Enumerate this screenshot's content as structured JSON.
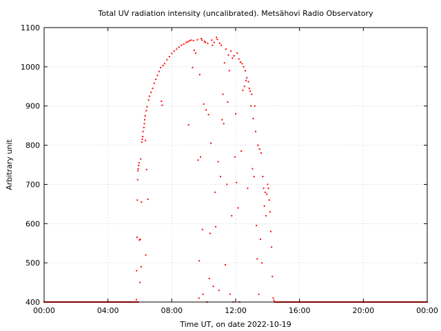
{
  "chart_data": {
    "type": "scatter",
    "title": "Total UV radiation intensity (uncalibrated). Metsähovi Radio Observatory",
    "xlabel": "Time UT, on date 2022-10-19",
    "ylabel": "Arbitrary unit",
    "xlim": [
      0,
      24
    ],
    "ylim": [
      400,
      1100
    ],
    "x_unit": "hours UT",
    "xticks": [
      0,
      4,
      8,
      12,
      16,
      20,
      24
    ],
    "xtick_labels": [
      "00:00",
      "04:00",
      "08:00",
      "12:00",
      "16:00",
      "20:00",
      "00:00"
    ],
    "yticks": [
      400,
      500,
      600,
      700,
      800,
      900,
      1000,
      1100
    ],
    "ytick_labels": [
      "400",
      "500",
      "600",
      "700",
      "800",
      "900",
      "1000",
      "1100"
    ],
    "grid": true,
    "marker_color": "#ff0000",
    "series": [
      {
        "points": [
          [
            0.0,
            400
          ],
          [
            5.9,
            400
          ],
          [
            5.78,
            406
          ],
          [
            5.8,
            480
          ],
          [
            5.82,
            565
          ],
          [
            5.84,
            660
          ],
          [
            5.86,
            712
          ],
          [
            5.88,
            735
          ],
          [
            5.9,
            740
          ],
          [
            5.92,
            748
          ],
          [
            5.95,
            755
          ],
          [
            5.97,
            558
          ],
          [
            6.0,
            450
          ],
          [
            6.02,
            560
          ],
          [
            6.05,
            765
          ],
          [
            6.08,
            490
          ],
          [
            6.1,
            655
          ],
          [
            6.12,
            808
          ],
          [
            6.15,
            815
          ],
          [
            6.18,
            822
          ],
          [
            6.2,
            835
          ],
          [
            6.25,
            845
          ],
          [
            6.28,
            855
          ],
          [
            6.3,
            865
          ],
          [
            6.33,
            875
          ],
          [
            6.35,
            812
          ],
          [
            6.37,
            520
          ],
          [
            6.4,
            888
          ],
          [
            6.42,
            738
          ],
          [
            6.45,
            898
          ],
          [
            6.5,
            662
          ],
          [
            6.55,
            915
          ],
          [
            6.6,
            925
          ],
          [
            6.7,
            935
          ],
          [
            6.8,
            945
          ],
          [
            6.9,
            958
          ],
          [
            7.0,
            968
          ],
          [
            7.1,
            978
          ],
          [
            7.2,
            988
          ],
          [
            7.3,
            998
          ],
          [
            7.35,
            912
          ],
          [
            7.4,
            902
          ],
          [
            7.45,
            1003
          ],
          [
            7.55,
            1008
          ],
          [
            7.7,
            1018
          ],
          [
            7.85,
            1026
          ],
          [
            8.0,
            1034
          ],
          [
            8.15,
            1040
          ],
          [
            8.3,
            1045
          ],
          [
            8.45,
            1050
          ],
          [
            8.6,
            1055
          ],
          [
            8.75,
            1058
          ],
          [
            8.9,
            1062
          ],
          [
            9.0,
            1064
          ],
          [
            9.05,
            852
          ],
          [
            9.1,
            1066
          ],
          [
            9.2,
            1068
          ],
          [
            9.3,
            998
          ],
          [
            9.35,
            1067
          ],
          [
            9.4,
            1042
          ],
          [
            9.5,
            1035
          ],
          [
            9.6,
            1069
          ],
          [
            9.65,
            762
          ],
          [
            9.7,
            410
          ],
          [
            9.72,
            505
          ],
          [
            9.75,
            980
          ],
          [
            9.8,
            770
          ],
          [
            9.85,
            1072
          ],
          [
            9.9,
            1068
          ],
          [
            9.92,
            585
          ],
          [
            9.95,
            420
          ],
          [
            10.0,
            905
          ],
          [
            10.05,
            1065
          ],
          [
            10.1,
            1062
          ],
          [
            10.15,
            890
          ],
          [
            10.2,
            400
          ],
          [
            10.25,
            1060
          ],
          [
            10.3,
            878
          ],
          [
            10.35,
            460
          ],
          [
            10.4,
            575
          ],
          [
            10.45,
            805
          ],
          [
            10.5,
            1068
          ],
          [
            10.55,
            1055
          ],
          [
            10.6,
            440
          ],
          [
            10.65,
            1062
          ],
          [
            10.7,
            680
          ],
          [
            10.75,
            592
          ],
          [
            10.8,
            1075
          ],
          [
            10.85,
            1070
          ],
          [
            10.9,
            758
          ],
          [
            10.95,
            430
          ],
          [
            11.0,
            1060
          ],
          [
            11.05,
            720
          ],
          [
            11.1,
            1055
          ],
          [
            11.15,
            865
          ],
          [
            11.2,
            930
          ],
          [
            11.25,
            855
          ],
          [
            11.3,
            1010
          ],
          [
            11.35,
            495
          ],
          [
            11.4,
            1045
          ],
          [
            11.45,
            700
          ],
          [
            11.5,
            910
          ],
          [
            11.55,
            1030
          ],
          [
            11.6,
            990
          ],
          [
            11.65,
            420
          ],
          [
            11.7,
            1040
          ],
          [
            11.75,
            620
          ],
          [
            11.8,
            1022
          ],
          [
            11.85,
            400
          ],
          [
            11.9,
            1028
          ],
          [
            11.95,
            770
          ],
          [
            12.0,
            880
          ],
          [
            12.05,
            705
          ],
          [
            12.1,
            1035
          ],
          [
            12.15,
            640
          ],
          [
            12.2,
            1020
          ],
          [
            12.25,
            400
          ],
          [
            12.3,
            1012
          ],
          [
            12.35,
            785
          ],
          [
            12.4,
            1008
          ],
          [
            12.45,
            940
          ],
          [
            12.5,
            1000
          ],
          [
            12.55,
            950
          ],
          [
            12.6,
            990
          ],
          [
            12.65,
            965
          ],
          [
            12.7,
            972
          ],
          [
            12.75,
            690
          ],
          [
            12.8,
            962
          ],
          [
            12.85,
            945
          ],
          [
            12.9,
            938
          ],
          [
            12.95,
            900
          ],
          [
            13.0,
            930
          ],
          [
            13.05,
            740
          ],
          [
            13.1,
            868
          ],
          [
            13.15,
            720
          ],
          [
            13.2,
            900
          ],
          [
            13.25,
            835
          ],
          [
            13.3,
            595
          ],
          [
            13.35,
            510
          ],
          [
            13.4,
            800
          ],
          [
            13.45,
            420
          ],
          [
            13.5,
            790
          ],
          [
            13.55,
            560
          ],
          [
            13.6,
            780
          ],
          [
            13.65,
            500
          ],
          [
            13.7,
            720
          ],
          [
            13.75,
            690
          ],
          [
            13.8,
            645
          ],
          [
            13.85,
            680
          ],
          [
            13.9,
            620
          ],
          [
            13.95,
            675
          ],
          [
            14.0,
            700
          ],
          [
            14.05,
            690
          ],
          [
            14.1,
            660
          ],
          [
            14.15,
            630
          ],
          [
            14.2,
            580
          ],
          [
            14.25,
            540
          ],
          [
            14.3,
            465
          ],
          [
            14.35,
            410
          ],
          [
            14.4,
            404
          ],
          [
            14.45,
            400
          ],
          [
            24.0,
            400
          ]
        ]
      }
    ]
  }
}
